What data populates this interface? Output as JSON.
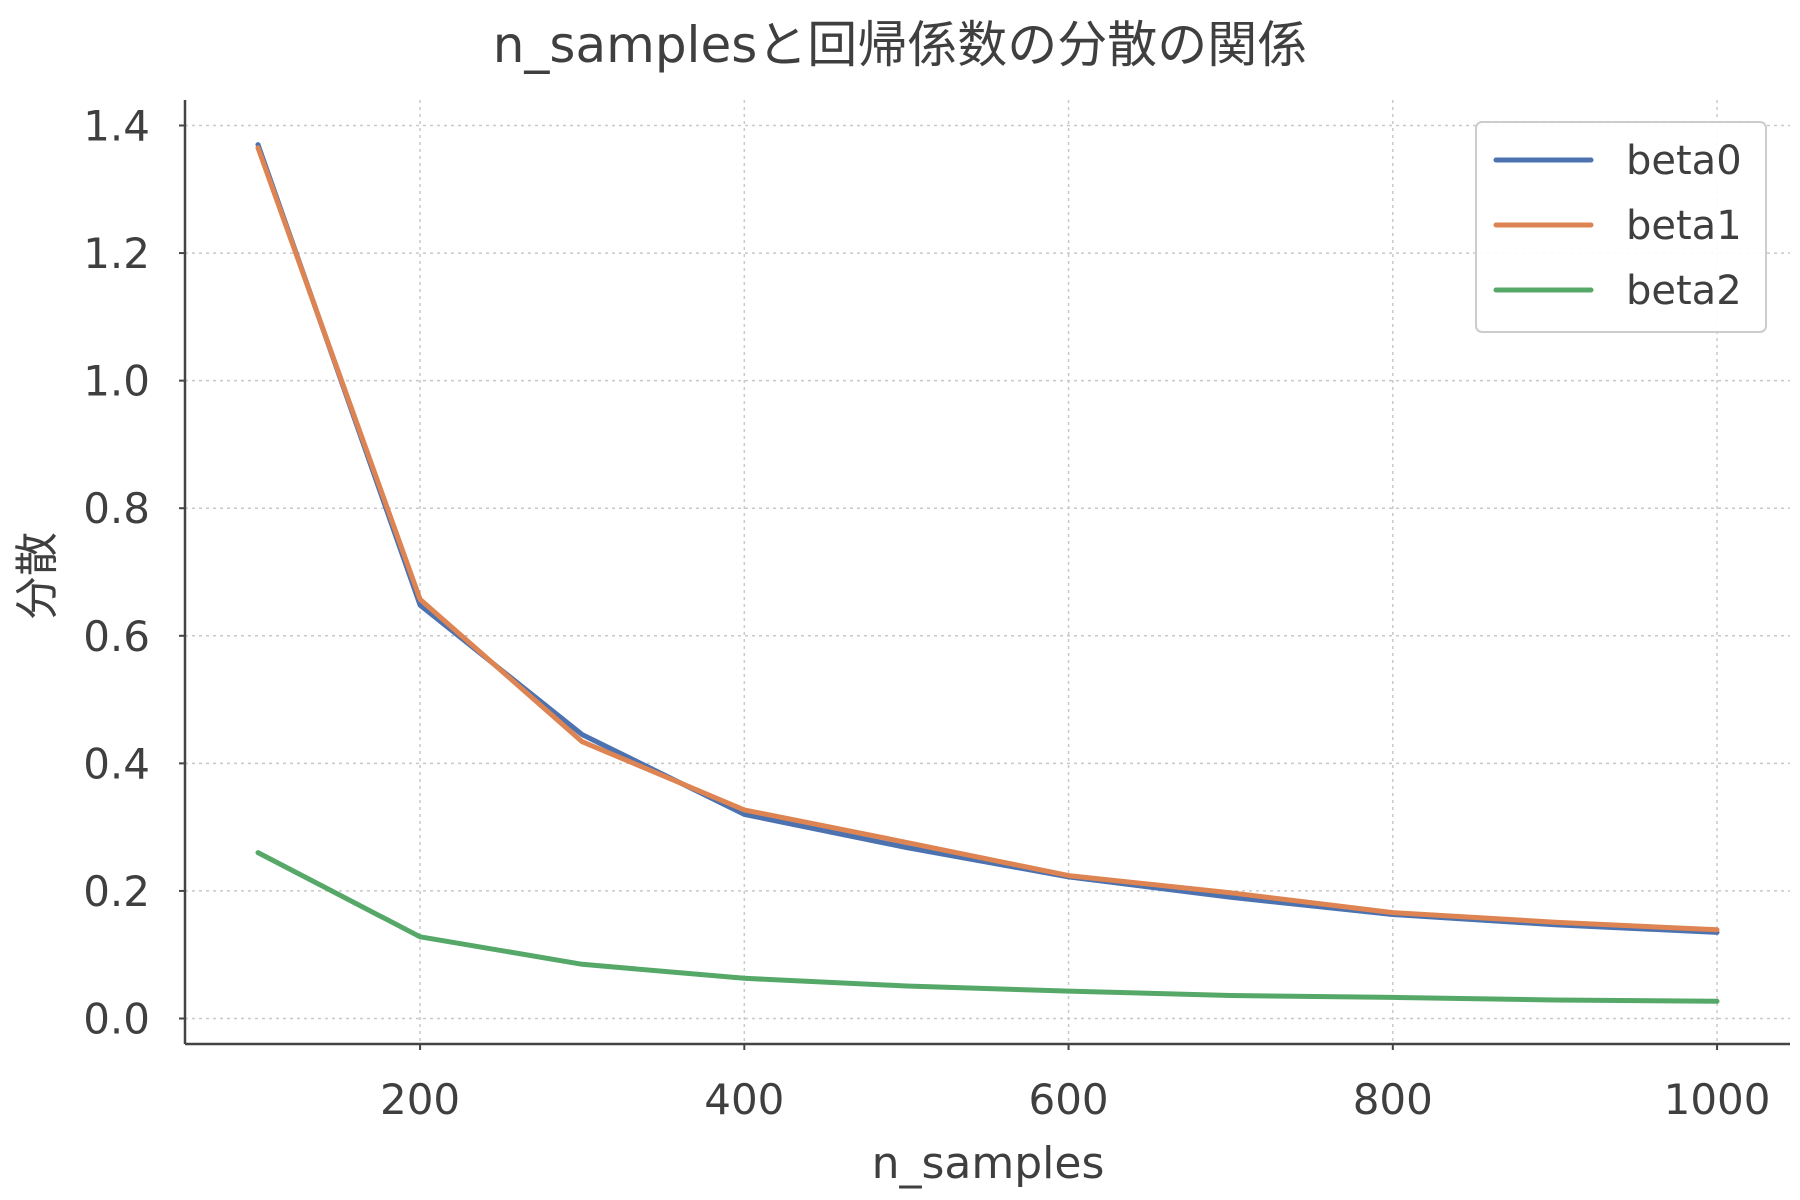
{
  "chart_data": {
    "type": "line",
    "title": "n_samplesと回帰係数の分散の関係",
    "xlabel": "n_samples",
    "ylabel": "分散",
    "x": [
      100,
      200,
      300,
      400,
      500,
      600,
      700,
      800,
      900,
      1000
    ],
    "xlim": [
      55,
      1045
    ],
    "ylim": [
      -0.04,
      1.44
    ],
    "x_ticks": [
      "200",
      "400",
      "600",
      "800",
      "1000"
    ],
    "x_tick_values": [
      200,
      400,
      600,
      800,
      1000
    ],
    "y_ticks": [
      "0.0",
      "0.2",
      "0.4",
      "0.6",
      "0.8",
      "1.0",
      "1.2",
      "1.4"
    ],
    "y_tick_values": [
      0.0,
      0.2,
      0.4,
      0.6,
      0.8,
      1.0,
      1.2,
      1.4
    ],
    "grid": true,
    "legend_position": "top-right",
    "series": [
      {
        "name": "beta0",
        "color": "#4c72b0",
        "values": [
          1.37,
          0.648,
          0.445,
          0.32,
          0.268,
          0.222,
          0.19,
          0.163,
          0.147,
          0.135
        ]
      },
      {
        "name": "beta1",
        "color": "#dd8452",
        "values": [
          1.365,
          0.657,
          0.434,
          0.327,
          0.276,
          0.224,
          0.197,
          0.166,
          0.151,
          0.139
        ]
      },
      {
        "name": "beta2",
        "color": "#55a868",
        "values": [
          0.26,
          0.128,
          0.085,
          0.063,
          0.051,
          0.043,
          0.036,
          0.033,
          0.029,
          0.027
        ]
      }
    ]
  }
}
